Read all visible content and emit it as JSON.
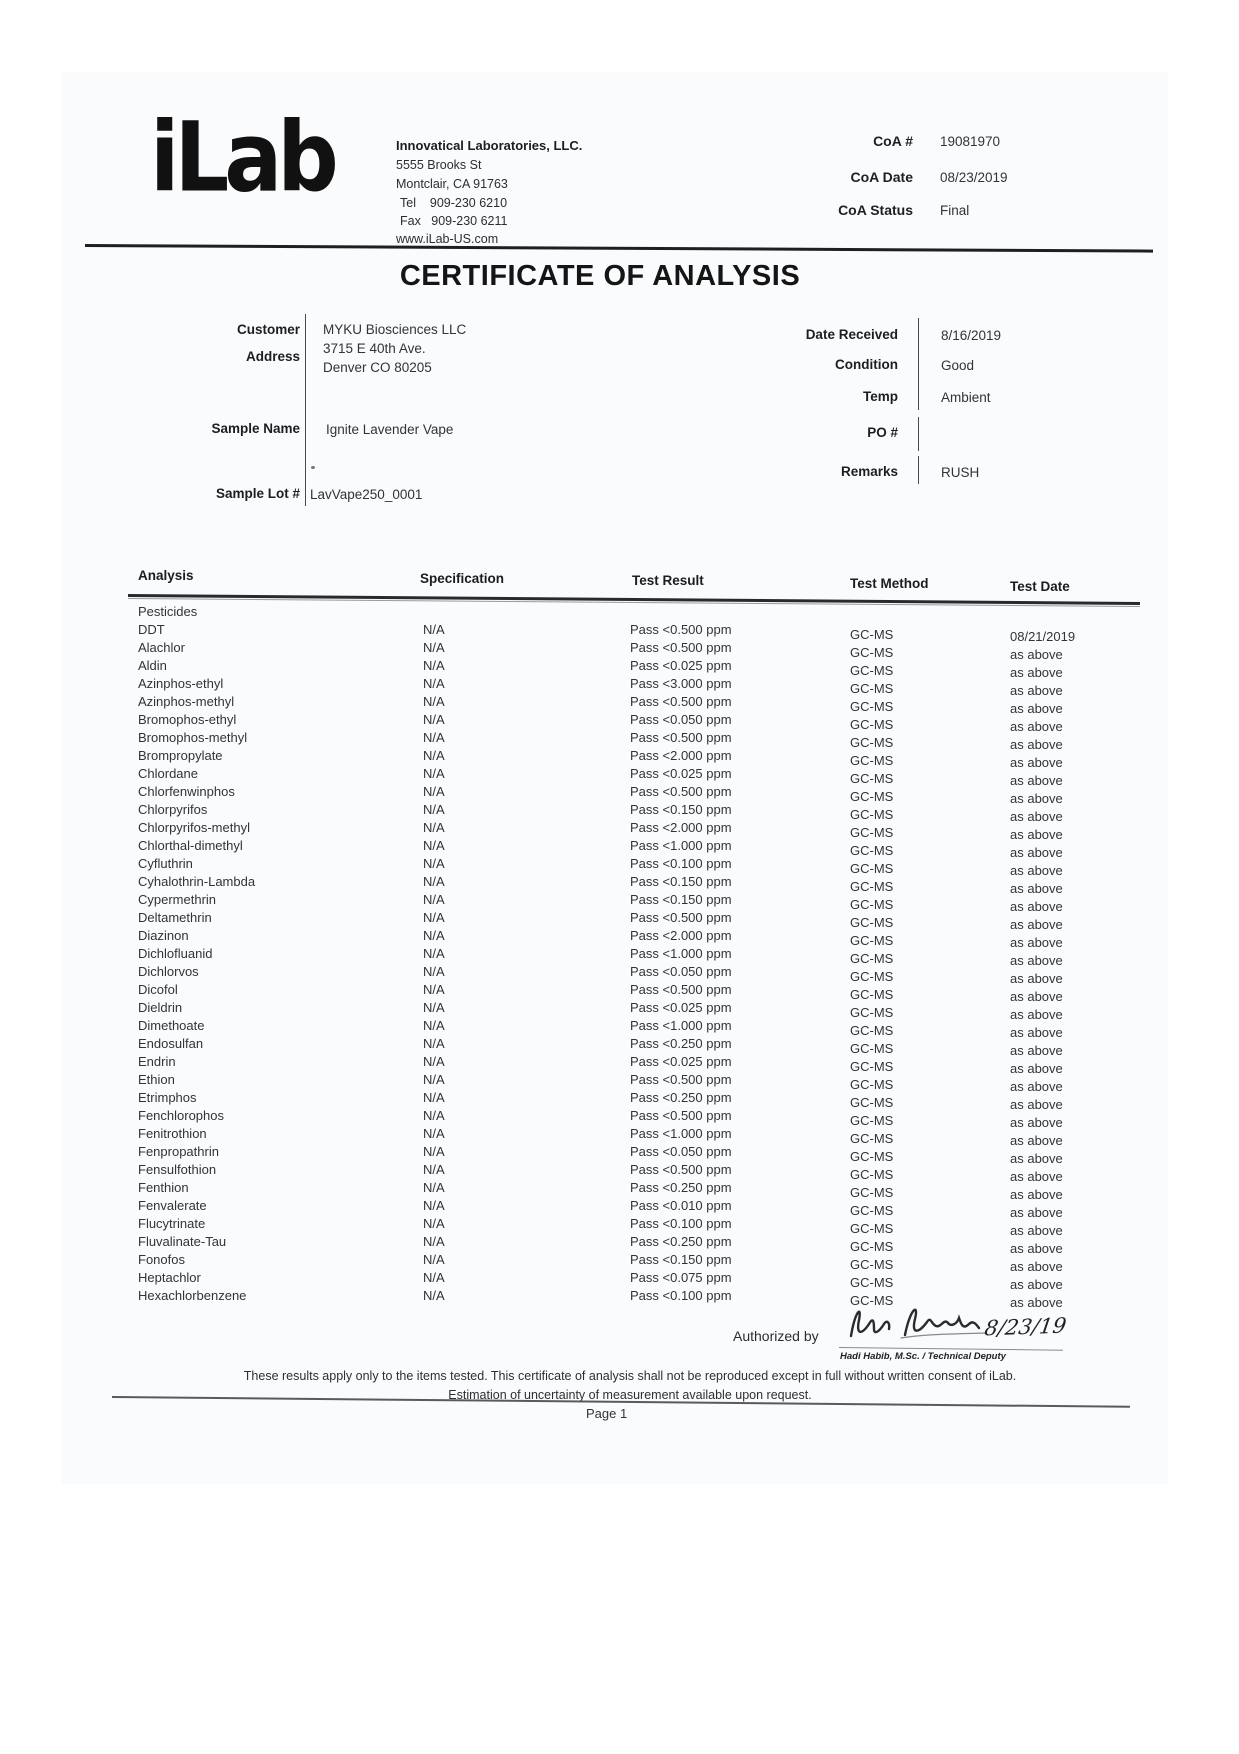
{
  "header": {
    "logo_text": "iLab",
    "company": {
      "name": "Innovatical Laboratories, LLC.",
      "address_line1": "5555 Brooks St",
      "address_line2": "Montclair, CA 91763",
      "tel_line": "Tel    909-230 6210",
      "fax_line": "Fax   909-230 6211",
      "website": "www.iLab-US.com"
    },
    "coa": {
      "number_label": "CoA #",
      "number": "19081970",
      "date_label": "CoA Date",
      "date": "08/23/2019",
      "status_label": "CoA Status",
      "status": "Final"
    }
  },
  "title": "CERTIFICATE OF ANALYSIS",
  "info": {
    "customer_label": "Customer",
    "customer": "MYKU Biosciences LLC",
    "address_label": "Address",
    "address_line1": "3715 E 40th Ave.",
    "address_line2": "Denver CO 80205",
    "sample_name_label": "Sample Name",
    "sample_name": "Ignite Lavender Vape",
    "sample_lot_label": "Sample Lot #",
    "sample_lot": "LavVape250_0001",
    "date_received_label": "Date Received",
    "date_received": "8/16/2019",
    "condition_label": "Condition",
    "condition": "Good",
    "temp_label": "Temp",
    "temp": "Ambient",
    "po_label": "PO #",
    "po": "",
    "remarks_label": "Remarks",
    "remarks": "RUSH"
  },
  "table": {
    "headers": [
      "Analysis",
      "Specification",
      "Test Result",
      "Test Method",
      "Test Date"
    ],
    "group_label": "Pesticides",
    "rows": [
      {
        "analysis": "DDT",
        "specification": "N/A",
        "result": "Pass <0.500 ppm",
        "method": "GC-MS",
        "date": "08/21/2019"
      },
      {
        "analysis": "Alachlor",
        "specification": "N/A",
        "result": "Pass <0.500 ppm",
        "method": "GC-MS",
        "date": "as above"
      },
      {
        "analysis": "Aldin",
        "specification": "N/A",
        "result": "Pass <0.025 ppm",
        "method": "GC-MS",
        "date": "as above"
      },
      {
        "analysis": "Azinphos-ethyl",
        "specification": "N/A",
        "result": "Pass <3.000 ppm",
        "method": "GC-MS",
        "date": "as above"
      },
      {
        "analysis": "Azinphos-methyl",
        "specification": "N/A",
        "result": "Pass <0.500 ppm",
        "method": "GC-MS",
        "date": "as above"
      },
      {
        "analysis": "Bromophos-ethyl",
        "specification": "N/A",
        "result": "Pass <0.050 ppm",
        "method": "GC-MS",
        "date": "as above"
      },
      {
        "analysis": "Bromophos-methyl",
        "specification": "N/A",
        "result": "Pass <0.500 ppm",
        "method": "GC-MS",
        "date": "as above"
      },
      {
        "analysis": "Brompropylate",
        "specification": "N/A",
        "result": "Pass <2.000 ppm",
        "method": "GC-MS",
        "date": "as above"
      },
      {
        "analysis": "Chlordane",
        "specification": "N/A",
        "result": "Pass <0.025 ppm",
        "method": "GC-MS",
        "date": "as above"
      },
      {
        "analysis": "Chlorfenwinphos",
        "specification": "N/A",
        "result": "Pass <0.500 ppm",
        "method": "GC-MS",
        "date": "as above"
      },
      {
        "analysis": "Chlorpyrifos",
        "specification": "N/A",
        "result": "Pass <0.150 ppm",
        "method": "GC-MS",
        "date": "as above"
      },
      {
        "analysis": "Chlorpyrifos-methyl",
        "specification": "N/A",
        "result": "Pass <2.000 ppm",
        "method": "GC-MS",
        "date": "as above"
      },
      {
        "analysis": "Chlorthal-dimethyl",
        "specification": "N/A",
        "result": "Pass <1.000 ppm",
        "method": "GC-MS",
        "date": "as above"
      },
      {
        "analysis": "Cyfluthrin",
        "specification": "N/A",
        "result": "Pass <0.100 ppm",
        "method": "GC-MS",
        "date": "as above"
      },
      {
        "analysis": "Cyhalothrin-Lambda",
        "specification": "N/A",
        "result": "Pass <0.150 ppm",
        "method": "GC-MS",
        "date": "as above"
      },
      {
        "analysis": "Cypermethrin",
        "specification": "N/A",
        "result": "Pass <0.150 ppm",
        "method": "GC-MS",
        "date": "as above"
      },
      {
        "analysis": "Deltamethrin",
        "specification": "N/A",
        "result": "Pass <0.500 ppm",
        "method": "GC-MS",
        "date": "as above"
      },
      {
        "analysis": "Diazinon",
        "specification": "N/A",
        "result": "Pass <2.000 ppm",
        "method": "GC-MS",
        "date": "as above"
      },
      {
        "analysis": "Dichlofluanid",
        "specification": "N/A",
        "result": "Pass <1.000 ppm",
        "method": "GC-MS",
        "date": "as above"
      },
      {
        "analysis": "Dichlorvos",
        "specification": "N/A",
        "result": "Pass <0.050 ppm",
        "method": "GC-MS",
        "date": "as above"
      },
      {
        "analysis": "Dicofol",
        "specification": "N/A",
        "result": "Pass <0.500 ppm",
        "method": "GC-MS",
        "date": "as above"
      },
      {
        "analysis": "Dieldrin",
        "specification": "N/A",
        "result": "Pass <0.025 ppm",
        "method": "GC-MS",
        "date": "as above"
      },
      {
        "analysis": "Dimethoate",
        "specification": "N/A",
        "result": "Pass <1.000 ppm",
        "method": "GC-MS",
        "date": "as above"
      },
      {
        "analysis": "Endosulfan",
        "specification": "N/A",
        "result": "Pass <0.250 ppm",
        "method": "GC-MS",
        "date": "as above"
      },
      {
        "analysis": "Endrin",
        "specification": "N/A",
        "result": "Pass <0.025 ppm",
        "method": "GC-MS",
        "date": "as above"
      },
      {
        "analysis": "Ethion",
        "specification": "N/A",
        "result": "Pass <0.500 ppm",
        "method": "GC-MS",
        "date": "as above"
      },
      {
        "analysis": "Etrimphos",
        "specification": "N/A",
        "result": "Pass <0.250 ppm",
        "method": "GC-MS",
        "date": "as above"
      },
      {
        "analysis": "Fenchlorophos",
        "specification": "N/A",
        "result": "Pass <0.500 ppm",
        "method": "GC-MS",
        "date": "as above"
      },
      {
        "analysis": "Fenitrothion",
        "specification": "N/A",
        "result": "Pass <1.000 ppm",
        "method": "GC-MS",
        "date": "as above"
      },
      {
        "analysis": "Fenpropathrin",
        "specification": "N/A",
        "result": "Pass <0.050 ppm",
        "method": "GC-MS",
        "date": "as above"
      },
      {
        "analysis": "Fensulfothion",
        "specification": "N/A",
        "result": "Pass <0.500 ppm",
        "method": "GC-MS",
        "date": "as above"
      },
      {
        "analysis": "Fenthion",
        "specification": "N/A",
        "result": "Pass <0.250 ppm",
        "method": "GC-MS",
        "date": "as above"
      },
      {
        "analysis": "Fenvalerate",
        "specification": "N/A",
        "result": "Pass <0.010 ppm",
        "method": "GC-MS",
        "date": "as above"
      },
      {
        "analysis": "Flucytrinate",
        "specification": "N/A",
        "result": "Pass <0.100 ppm",
        "method": "GC-MS",
        "date": "as above"
      },
      {
        "analysis": "Fluvalinate-Tau",
        "specification": "N/A",
        "result": "Pass <0.250 ppm",
        "method": "GC-MS",
        "date": "as above"
      },
      {
        "analysis": "Fonofos",
        "specification": "N/A",
        "result": "Pass <0.150 ppm",
        "method": "GC-MS",
        "date": "as above"
      },
      {
        "analysis": "Heptachlor",
        "specification": "N/A",
        "result": "Pass <0.075 ppm",
        "method": "GC-MS",
        "date": "as above"
      },
      {
        "analysis": "Hexachlorbenzene",
        "specification": "N/A",
        "result": "Pass <0.100 ppm",
        "method": "GC-MS",
        "date": "as above"
      }
    ]
  },
  "footer": {
    "authorized_by_label": "Authorized by",
    "signature_name": "Hadi Habib",
    "signature_date": "8/23/19",
    "signer_title": "Hadi Habib, M.Sc. / Technical Deputy",
    "disclaimer_line1": "These results apply only to the items tested. This certificate of analysis shall not be reproduced except in full without written consent of iLab.",
    "disclaimer_line2": "Estimation of uncertainty of measurement available upon request.",
    "page_number": "Page 1"
  }
}
